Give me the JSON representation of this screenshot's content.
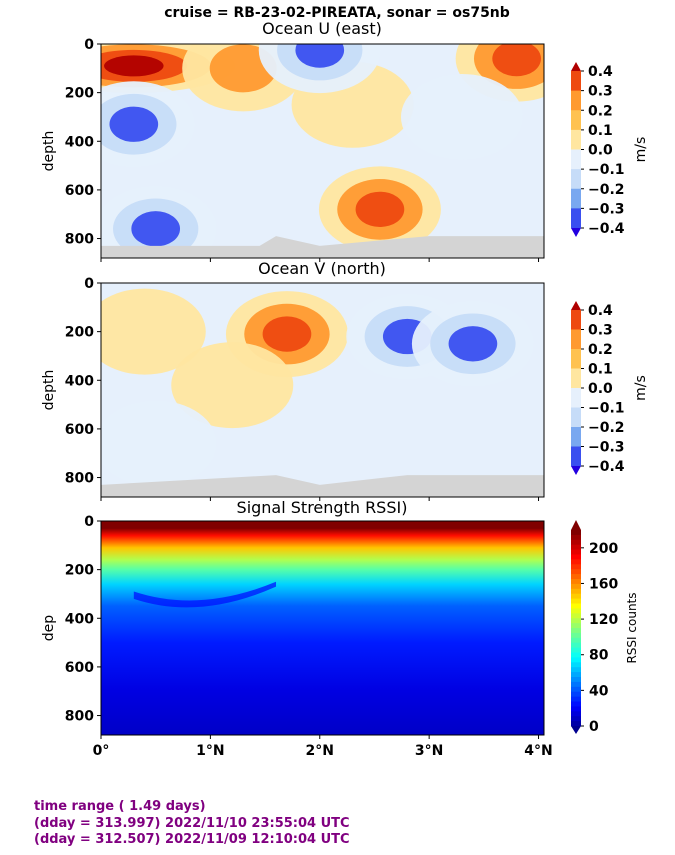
{
  "suptitle": "cruise = RB-23-02-PIREATA,  sonar = os75nb",
  "footer": {
    "line1": "time range ( 1.49 days)",
    "line2": "(dday = 313.997) 2022/11/10 23:55:04 UTC",
    "line3": "(dday = 312.507) 2022/11/09 12:10:04 UTC",
    "color": "#800080"
  },
  "colors": {
    "diverging": [
      "#2300e0",
      "#3a4ff0",
      "#79a8f0",
      "#c6dcf8",
      "#e6f0fc",
      "#fff7d6",
      "#ffe6a0",
      "#ffc250",
      "#ff9a30",
      "#ee4a10",
      "#b00000"
    ],
    "nodata": "#d4d4d4"
  },
  "chart_data": [
    {
      "type": "heatmap",
      "title": "Ocean U (east)",
      "xlabel": "",
      "ylabel": "depth",
      "x_ticks": [
        "0°",
        "1°N",
        "2°N",
        "3°N",
        "4°N"
      ],
      "y_ticks": [
        "0",
        "200",
        "400",
        "600",
        "800"
      ],
      "xlim": [
        0,
        4.05
      ],
      "ylim": [
        880,
        0
      ],
      "colorbar": {
        "label": "m/s",
        "ticks": [
          "0.4",
          "0.3",
          "0.2",
          "0.1",
          "0.0",
          "−0.1",
          "−0.2",
          "−0.3",
          "−0.4"
        ],
        "range": [
          -0.4,
          0.4
        ],
        "extend": "both"
      },
      "grid": false,
      "bottom_depth": [
        {
          "lat": 0,
          "depth": 830
        },
        {
          "lat": 1.45,
          "depth": 830
        },
        {
          "lat": 1.6,
          "depth": 790
        },
        {
          "lat": 2.0,
          "depth": 830
        },
        {
          "lat": 3.0,
          "depth": 790
        },
        {
          "lat": 4.05,
          "depth": 790
        }
      ],
      "features": [
        {
          "lat": 0.3,
          "depth": 90,
          "value": 0.4
        },
        {
          "lat": 1.3,
          "depth": 100,
          "value": 0.2
        },
        {
          "lat": 2.3,
          "depth": 250,
          "value": 0.15
        },
        {
          "lat": 0.3,
          "depth": 330,
          "value": -0.25
        },
        {
          "lat": 0.5,
          "depth": 760,
          "value": -0.35
        },
        {
          "lat": 2.55,
          "depth": 680,
          "value": 0.25
        },
        {
          "lat": 3.8,
          "depth": 60,
          "value": 0.3
        },
        {
          "lat": 3.3,
          "depth": 300,
          "value": -0.15
        },
        {
          "lat": 2.0,
          "depth": 25,
          "value": -0.3
        }
      ]
    },
    {
      "type": "heatmap",
      "title": "Ocean V (north)",
      "xlabel": "",
      "ylabel": "depth",
      "x_ticks": [
        "0°",
        "1°N",
        "2°N",
        "3°N",
        "4°N"
      ],
      "y_ticks": [
        "0",
        "200",
        "400",
        "600",
        "800"
      ],
      "xlim": [
        0,
        4.05
      ],
      "ylim": [
        880,
        0
      ],
      "colorbar": {
        "label": "m/s",
        "ticks": [
          "0.4",
          "0.3",
          "0.2",
          "0.1",
          "0.0",
          "−0.1",
          "−0.2",
          "−0.3",
          "−0.4"
        ],
        "range": [
          -0.4,
          0.4
        ],
        "extend": "both"
      },
      "grid": false,
      "bottom_depth": [
        {
          "lat": 0,
          "depth": 830
        },
        {
          "lat": 1.6,
          "depth": 790
        },
        {
          "lat": 2.0,
          "depth": 830
        },
        {
          "lat": 2.8,
          "depth": 790
        },
        {
          "lat": 4.05,
          "depth": 790
        }
      ],
      "features": [
        {
          "lat": 0.4,
          "depth": 200,
          "value": 0.15
        },
        {
          "lat": 1.7,
          "depth": 210,
          "value": 0.25
        },
        {
          "lat": 1.2,
          "depth": 420,
          "value": 0.1
        },
        {
          "lat": 2.8,
          "depth": 220,
          "value": -0.35
        },
        {
          "lat": 3.4,
          "depth": 250,
          "value": -0.25
        },
        {
          "lat": 0.5,
          "depth": 660,
          "value": -0.15
        }
      ]
    },
    {
      "type": "heatmap",
      "title": "Signal Strength RSSI)",
      "xlabel": "",
      "ylabel": "dep",
      "x_ticks": [
        "0°",
        "1°N",
        "2°N",
        "3°N",
        "4°N"
      ],
      "y_ticks": [
        "0",
        "200",
        "400",
        "600",
        "800"
      ],
      "xlim": [
        0,
        4.05
      ],
      "ylim": [
        880,
        0
      ],
      "colorbar": {
        "label": "RSSI counts",
        "ticks": [
          "200",
          "160",
          "120",
          "80",
          "40",
          "0"
        ],
        "range": [
          0,
          220
        ],
        "extend": "both"
      },
      "grid": false,
      "depth_profile": [
        {
          "depth": 30,
          "value": 220
        },
        {
          "depth": 60,
          "value": 190
        },
        {
          "depth": 110,
          "value": 150
        },
        {
          "depth": 160,
          "value": 120
        },
        {
          "depth": 200,
          "value": 100
        },
        {
          "depth": 260,
          "value": 70
        },
        {
          "depth": 350,
          "value": 45
        },
        {
          "depth": 500,
          "value": 30
        },
        {
          "depth": 700,
          "value": 18
        },
        {
          "depth": 880,
          "value": 12
        }
      ]
    }
  ]
}
